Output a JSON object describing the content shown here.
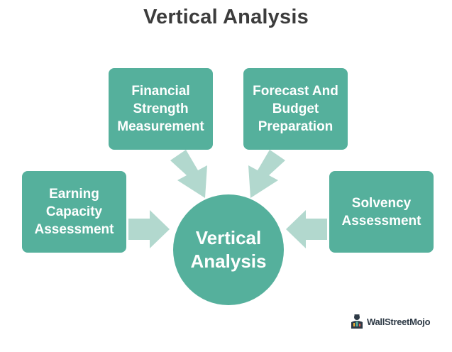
{
  "title": "Vertical Analysis",
  "colors": {
    "box": "#55b09c",
    "arrow": "#b2d8ce",
    "title": "#3c3c3c"
  },
  "boxes": {
    "financial": "Financial\nStrength\nMeasurement",
    "forecast": "Forecast And\nBudget\nPreparation",
    "earning": "Earning\nCapacity\nAssessment",
    "solvency": "Solvency\nAssessment"
  },
  "center": "Vertical\nAnalysis",
  "brand": {
    "name": "WallStreetMojo",
    "icon": "wallstreetmojo-logo-icon"
  }
}
